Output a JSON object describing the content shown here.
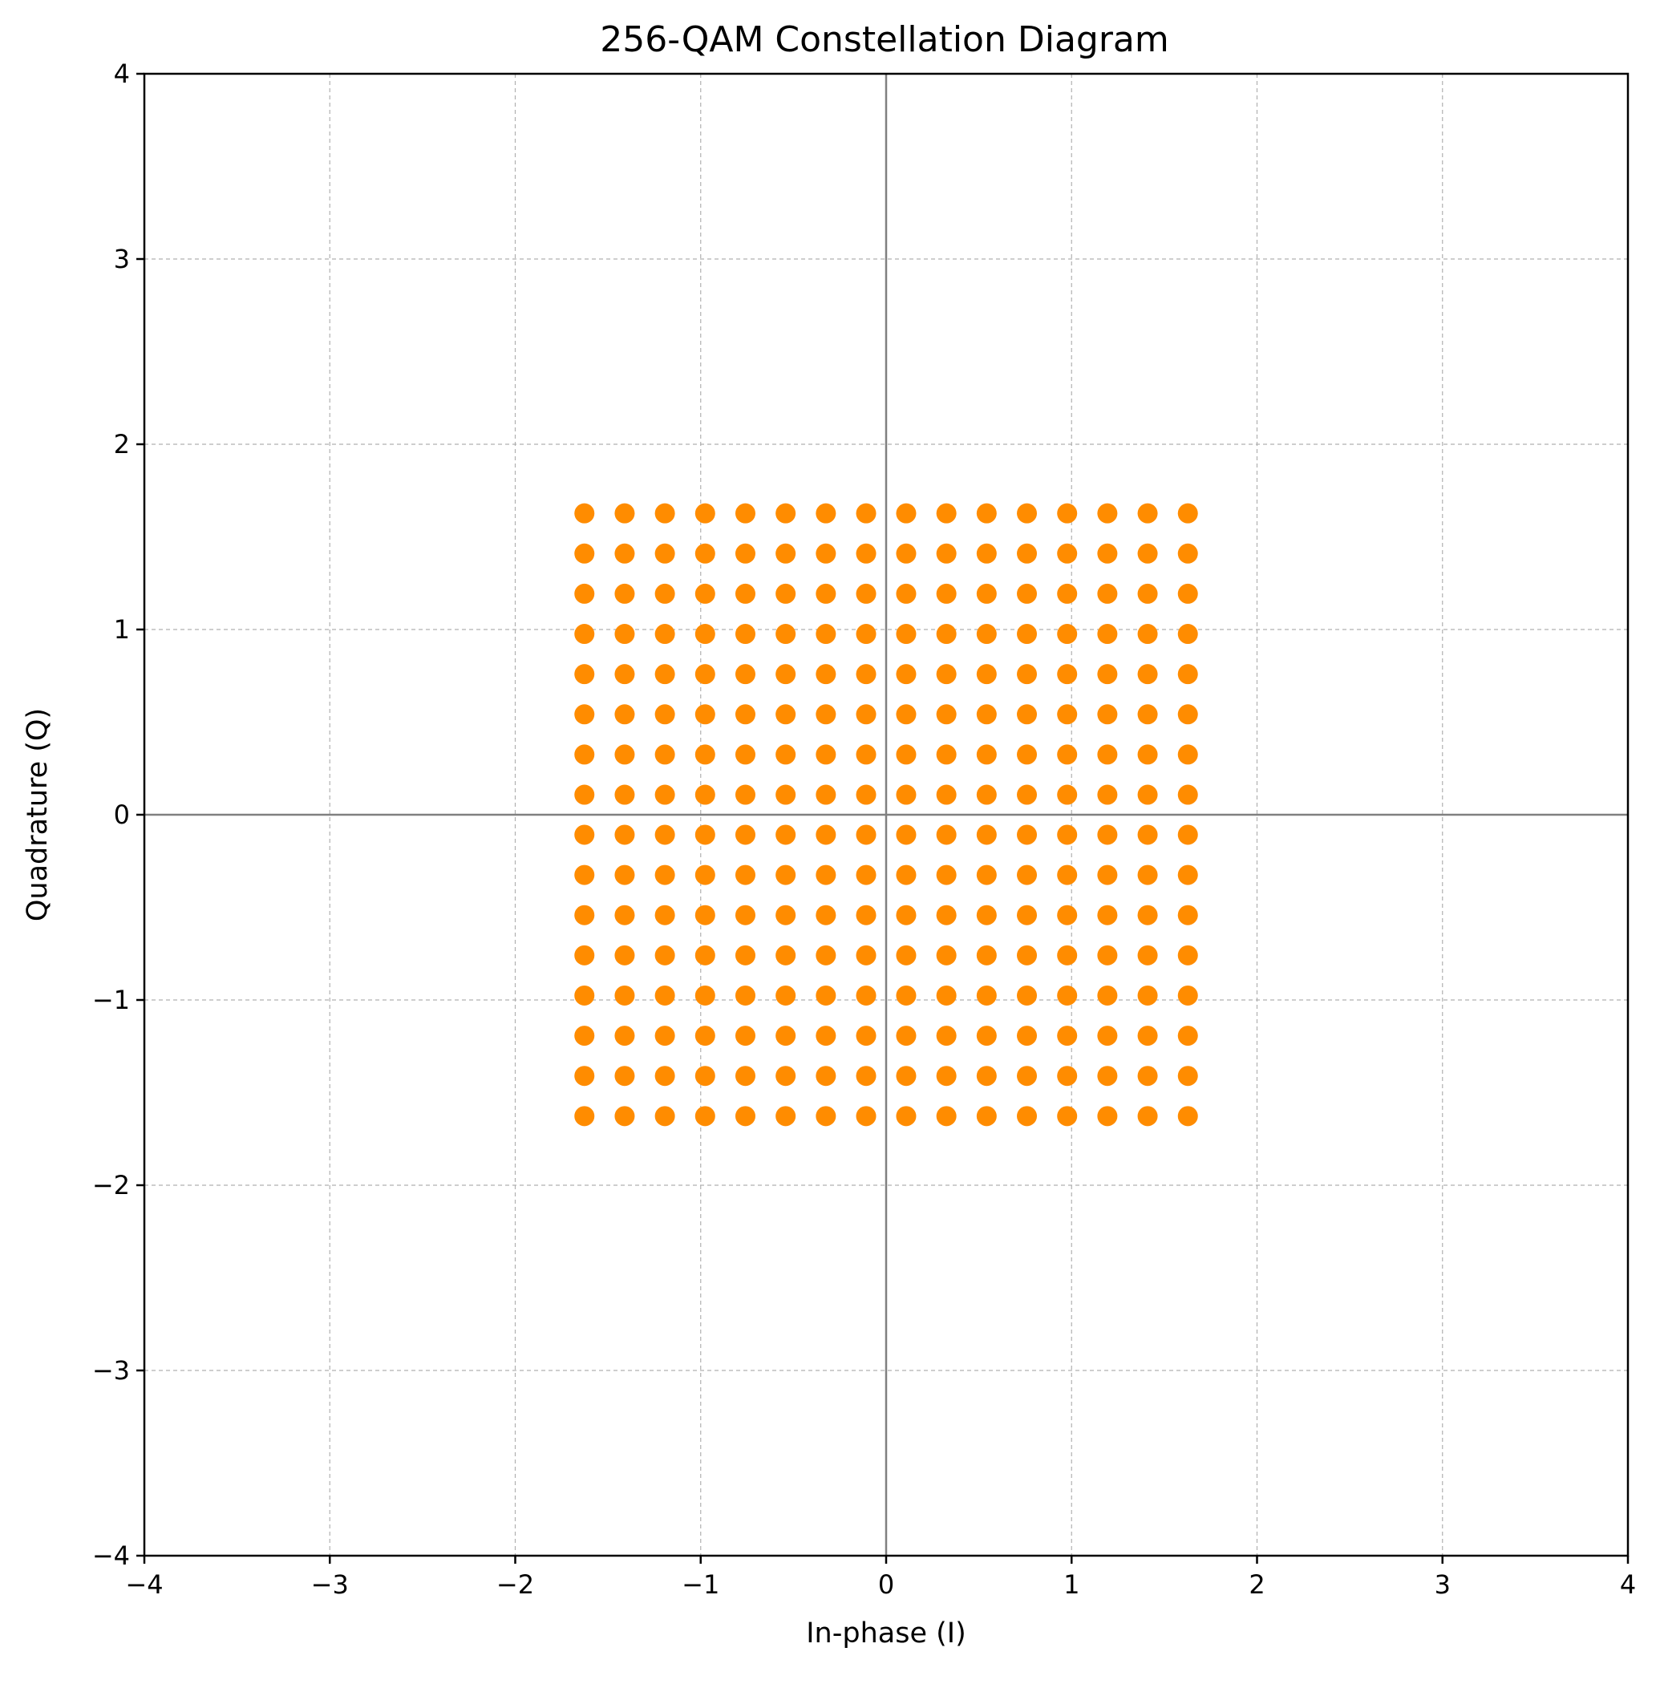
{
  "chart_data": {
    "type": "scatter",
    "title": "256-QAM Constellation Diagram",
    "xlabel": "In-phase (I)",
    "ylabel": "Quadrature (Q)",
    "xlim": [
      -4,
      4
    ],
    "ylim": [
      -4,
      4
    ],
    "xticks": [
      "−4",
      "−3",
      "−2",
      "−1",
      "0",
      "1",
      "2",
      "3",
      "4"
    ],
    "yticks": [
      "−4",
      "−3",
      "−2",
      "−1",
      "0",
      "1",
      "2",
      "3",
      "4"
    ],
    "grid": true,
    "grid_style": "dashed",
    "zero_lines": true,
    "marker_color": "#ff8c00",
    "grid_levels": [
      -1.627,
      -1.41,
      -1.193,
      -0.976,
      -0.759,
      -0.542,
      -0.325,
      -0.108,
      0.108,
      0.325,
      0.542,
      0.759,
      0.976,
      1.193,
      1.41,
      1.627
    ],
    "points_note": "Full 16x16 grid: every combination of grid_levels for I and Q (256 points)"
  }
}
